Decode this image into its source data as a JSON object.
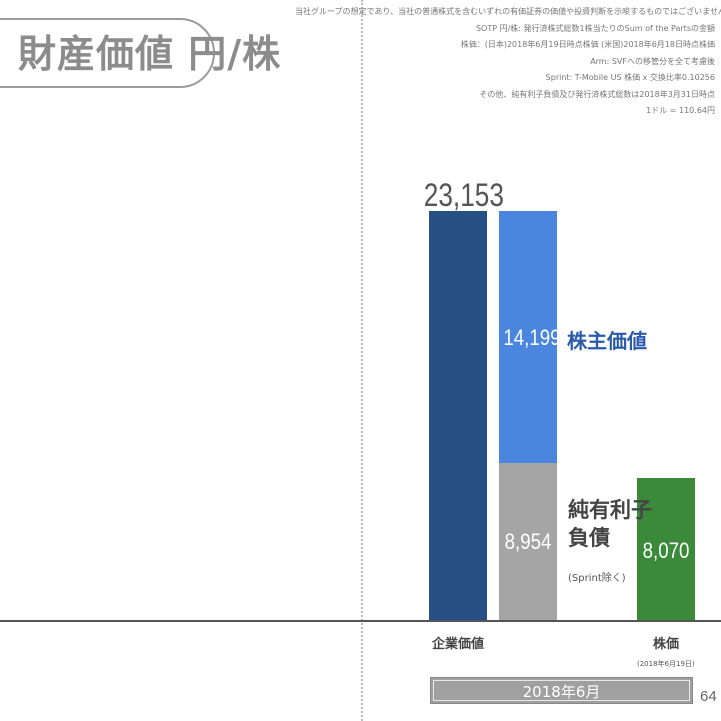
{
  "title": "財産価値 円/株",
  "notes": [
    "当社グループの想定であり、当社の普通株式を含むいずれの有価証券の価値や投資判断を示唆するものではございません。",
    "SOTP 円/株: 発行済株式総数1株当たりのSum of the Partsの金額",
    "株価：(日本)2018年6月19日時点株価 (米国)2018年6月18日時点株価",
    "Arm: SVFへの移管分を全て考慮後",
    "Sprint: T-Mobile US 株価 x 交換比率0.10256",
    "その他、純有利子負債及び発行済株式総数は2018年3月31日時点",
    "1ドル = 110.64円"
  ],
  "chart_data": {
    "type": "bar",
    "title": "財産価値 円/株",
    "categories": [
      "企業価値",
      "株主価値 / 純有利子負債",
      "株価"
    ],
    "series": [
      {
        "name": "企業価値",
        "values": [
          23153,
          null,
          null
        ],
        "color": "#264f85"
      },
      {
        "name": "株主価値",
        "values": [
          null,
          14199,
          null
        ],
        "color": "#4a86dd"
      },
      {
        "name": "純有利子負債 (Sprint除く)",
        "values": [
          null,
          8954,
          null
        ],
        "color": "#a5a5a5"
      },
      {
        "name": "株価",
        "values": [
          null,
          null,
          8070
        ],
        "color": "#3a8a3a"
      }
    ],
    "stacked": true,
    "period": "2018年6月",
    "grid": false
  },
  "labels": {
    "ev_value": "23,153",
    "equity_value": "14,199",
    "equity_label": "株主価値",
    "debt_value": "8,954",
    "debt_label_1": "純有利子",
    "debt_label_2": "負債",
    "debt_sub": "(Sprint除く)",
    "price_value": "8,070",
    "x_ev": "企業価値",
    "x_price": "株価",
    "x_price_sub": "(2018年6月19日)",
    "period": "2018年6月",
    "page": "64"
  }
}
